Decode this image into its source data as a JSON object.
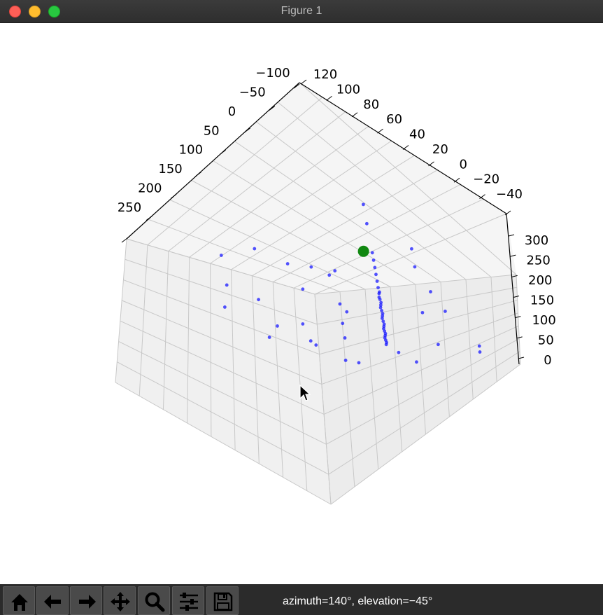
{
  "window": {
    "title": "Figure 1"
  },
  "axes": {
    "x_ticks": [
      "−100",
      "−50",
      "0",
      "50",
      "100",
      "150",
      "200",
      "250"
    ],
    "y_ticks": [
      "120",
      "100",
      "80",
      "60",
      "40",
      "20",
      "0",
      "−20",
      "−40"
    ],
    "z_ticks": [
      "300",
      "250",
      "200",
      "150",
      "100",
      "50",
      "0"
    ]
  },
  "toolbar": {
    "buttons": [
      {
        "name": "home-button",
        "icon": "home-icon"
      },
      {
        "name": "back-button",
        "icon": "arrow-left-icon"
      },
      {
        "name": "forward-button",
        "icon": "arrow-right-icon"
      },
      {
        "name": "pan-button",
        "icon": "move-icon"
      },
      {
        "name": "zoom-button",
        "icon": "magnifier-icon"
      },
      {
        "name": "configure-subplots-button",
        "icon": "sliders-icon"
      },
      {
        "name": "save-button",
        "icon": "floppy-disk-icon"
      }
    ],
    "status": "azimuth=140°, elevation=−45°"
  },
  "colors": {
    "points": "#1a1aff",
    "marker": "#118811",
    "pane": "#f2f2f2",
    "grid": "#c8c8c8"
  },
  "chart_data": {
    "type": "scatter",
    "projection": "3d",
    "azimuth": 140,
    "elevation": -45,
    "xlim": [
      -100,
      250
    ],
    "ylim": [
      -40,
      120
    ],
    "zlim": [
      0,
      300
    ],
    "grid": true,
    "series": [
      {
        "marker": "dot",
        "color": "#1a1aff",
        "points": [
          [
            110,
            10,
            60
          ],
          [
            100,
            15,
            55
          ],
          [
            90,
            20,
            50
          ],
          [
            80,
            25,
            45
          ],
          [
            70,
            30,
            40
          ],
          [
            60,
            35,
            36
          ],
          [
            50,
            40,
            32
          ],
          [
            40,
            45,
            28
          ],
          [
            30,
            50,
            24
          ],
          [
            20,
            55,
            20
          ],
          [
            10,
            60,
            16
          ],
          [
            0,
            65,
            12
          ],
          [
            -10,
            70,
            9
          ],
          [
            -20,
            75,
            7
          ],
          [
            -30,
            80,
            5
          ],
          [
            -40,
            85,
            4
          ],
          [
            5,
            62,
            10
          ],
          [
            15,
            58,
            14
          ],
          [
            25,
            52,
            22
          ],
          [
            35,
            48,
            26
          ],
          [
            45,
            42,
            30
          ],
          [
            55,
            38,
            34
          ],
          [
            65,
            32,
            38
          ],
          [
            75,
            28,
            42
          ],
          [
            85,
            22,
            48
          ],
          [
            95,
            18,
            52
          ],
          [
            105,
            12,
            58
          ],
          [
            140,
            30,
            80
          ],
          [
            -50,
            90,
            3
          ],
          [
            120,
            -5,
            70
          ],
          [
            150,
            60,
            90
          ],
          [
            200,
            -10,
            120
          ],
          [
            180,
            40,
            100
          ],
          [
            160,
            90,
            140
          ],
          [
            210,
            20,
            150
          ],
          [
            230,
            50,
            160
          ],
          [
            220,
            90,
            200
          ],
          [
            240,
            -20,
            180
          ],
          [
            190,
            100,
            220
          ],
          [
            250,
            30,
            250
          ],
          [
            -60,
            60,
            20
          ],
          [
            -80,
            70,
            30
          ],
          [
            40,
            100,
            60
          ],
          [
            60,
            110,
            80
          ],
          [
            -20,
            20,
            15
          ],
          [
            10,
            -20,
            20
          ],
          [
            30,
            -30,
            40
          ],
          [
            130,
            100,
            260
          ],
          [
            170,
            110,
            280
          ],
          [
            -40,
            40,
            10
          ],
          [
            20,
            90,
            40
          ],
          [
            80,
            60,
            70
          ],
          [
            100,
            80,
            110
          ],
          [
            120,
            40,
            90
          ],
          [
            140,
            -30,
            100
          ],
          [
            60,
            -10,
            50
          ],
          [
            -70,
            100,
            50
          ],
          [
            -90,
            110,
            60
          ],
          [
            0,
            30,
            8
          ],
          [
            50,
            80,
            90
          ],
          [
            90,
            50,
            75
          ]
        ]
      },
      {
        "marker": "large-dot",
        "color": "#118811",
        "points": [
          [
            -45,
            95,
            2
          ]
        ]
      }
    ]
  }
}
